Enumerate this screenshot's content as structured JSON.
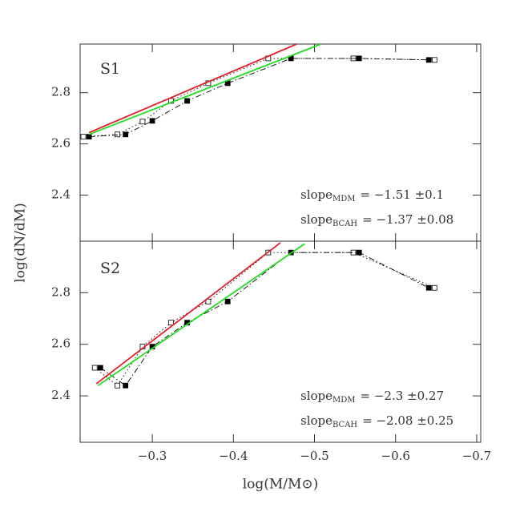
{
  "chart_data": [
    {
      "type": "line",
      "panel_label": "S1",
      "ylabel": "log(dN/dM)",
      "xlim": [
        -0.211,
        -0.705
      ],
      "ylim": [
        2.22,
        2.99
      ],
      "yticks": [
        2.4,
        2.6,
        2.8
      ],
      "series": [
        {
          "color": "#000000",
          "dash": "dotted",
          "marker": "open-square",
          "x": [
            -0.215,
            -0.257,
            -0.288,
            -0.323,
            -0.369,
            -0.443,
            -0.548,
            -0.648
          ],
          "values": [
            2.628,
            2.637,
            2.687,
            2.768,
            2.837,
            2.934,
            2.934,
            2.928
          ]
        },
        {
          "color": "#000000",
          "dash": "dashdot",
          "marker": "filled-square",
          "x": [
            -0.222,
            -0.267,
            -0.3,
            -0.343,
            -0.393,
            -0.471,
            -0.555,
            -0.641
          ],
          "values": [
            2.628,
            2.637,
            2.69,
            2.768,
            2.837,
            2.934,
            2.934,
            2.928
          ]
        },
        {
          "color": "#e0202a",
          "dash": "solid",
          "marker": "none",
          "x": [
            -0.222,
            -0.478
          ],
          "values": [
            2.644,
            2.99
          ]
        },
        {
          "color": "#22dd22",
          "dash": "solid",
          "marker": "none",
          "x": [
            -0.222,
            -0.508
          ],
          "values": [
            2.637,
            2.99
          ]
        }
      ],
      "annotations": [
        {
          "text": "slope",
          "sub": "MDM",
          "rest": "=   −1.51  ±0.1"
        },
        {
          "text": "slope",
          "sub": "BCAH",
          "rest": "=  −1.37  ±0.08"
        }
      ]
    },
    {
      "type": "line",
      "panel_label": "S2",
      "xlabel": "log(M/M⊙)",
      "xlim": [
        -0.211,
        -0.705
      ],
      "ylim": [
        2.22,
        3.0
      ],
      "xticks": [
        {
          "value": -0.3,
          "label": "−0.3"
        },
        {
          "value": -0.4,
          "label": "−0.4"
        },
        {
          "value": -0.5,
          "label": "−0.5"
        },
        {
          "value": -0.6,
          "label": "−0.6"
        },
        {
          "value": -0.7,
          "label": "−0.7"
        }
      ],
      "yticks": [
        2.4,
        2.6,
        2.8
      ],
      "series": [
        {
          "color": "#000000",
          "dash": "dotted",
          "marker": "open-square",
          "x": [
            -0.229,
            -0.257,
            -0.288,
            -0.323,
            -0.369,
            -0.443,
            -0.548,
            -0.648
          ],
          "values": [
            2.509,
            2.44,
            2.591,
            2.684,
            2.766,
            2.956,
            2.956,
            2.819
          ]
        },
        {
          "color": "#000000",
          "dash": "dashdot",
          "marker": "filled-square",
          "x": [
            -0.236,
            -0.267,
            -0.3,
            -0.343,
            -0.393,
            -0.471,
            -0.555,
            -0.641
          ],
          "values": [
            2.509,
            2.44,
            2.591,
            2.684,
            2.766,
            2.956,
            2.956,
            2.819
          ]
        },
        {
          "color": "#e0202a",
          "dash": "solid",
          "marker": "none",
          "x": [
            -0.231,
            -0.458
          ],
          "values": [
            2.447,
            2.994
          ]
        },
        {
          "color": "#22dd22",
          "dash": "solid",
          "marker": "none",
          "x": [
            -0.233,
            -0.488
          ],
          "values": [
            2.44,
            2.99
          ]
        }
      ],
      "annotations": [
        {
          "text": "slope",
          "sub": "MDM",
          "rest": "=  −2.3  ±0.27"
        },
        {
          "text": "slope",
          "sub": "BCAH",
          "rest": "=  −2.08  ±0.25"
        }
      ]
    }
  ]
}
